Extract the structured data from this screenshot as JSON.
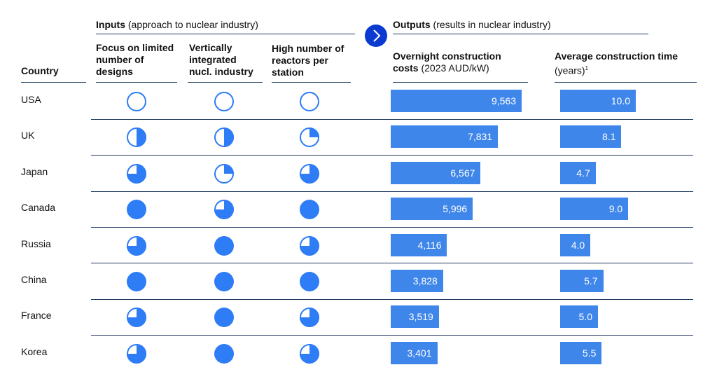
{
  "inputs_group": {
    "title": "Inputs",
    "subtitle": "(approach to nuclear industry)"
  },
  "outputs_group": {
    "title": "Outputs",
    "subtitle": "(results in nuclear industry)"
  },
  "headers": {
    "country": "Country",
    "focus": [
      "Focus on limited",
      "number of",
      "designs"
    ],
    "vertical": [
      "Vertically",
      "integrated",
      "nucl. industry"
    ],
    "reactors": [
      "High number of",
      "reactors per",
      "station"
    ],
    "cost_title": [
      "Overnight construction",
      "costs"
    ],
    "cost_unit": "(2023 AUD/kW)",
    "time_title": "Average construction time",
    "time_unit": "(years)",
    "time_footnote": "1"
  },
  "colors": {
    "bar": "#3f86ea",
    "dot": "#2e7cf6",
    "rule": "#1f3a5f",
    "arrow": "#0b3ad1"
  },
  "chart_data": {
    "type": "table",
    "rows": [
      {
        "country": "USA",
        "focus": 0,
        "vertical": 0,
        "reactors": 0,
        "cost": 9563,
        "cost_label": "9,563",
        "time": 10.0,
        "time_label": "10.0"
      },
      {
        "country": "UK",
        "focus": 0.5,
        "vertical": 0.5,
        "reactors": 0.25,
        "cost": 7831,
        "cost_label": "7,831",
        "time": 8.1,
        "time_label": "8.1"
      },
      {
        "country": "Japan",
        "focus": 0.75,
        "vertical": 0.25,
        "reactors": 0.75,
        "cost": 6567,
        "cost_label": "6,567",
        "time": 4.7,
        "time_label": "4.7"
      },
      {
        "country": "Canada",
        "focus": 1,
        "vertical": 0.75,
        "reactors": 1,
        "cost": 5996,
        "cost_label": "5,996",
        "time": 9.0,
        "time_label": "9.0"
      },
      {
        "country": "Russia",
        "focus": 0.75,
        "vertical": 1,
        "reactors": 0.75,
        "cost": 4116,
        "cost_label": "4,116",
        "time": 4.0,
        "time_label": "4.0"
      },
      {
        "country": "China",
        "focus": 1,
        "vertical": 1,
        "reactors": 1,
        "cost": 3828,
        "cost_label": "3,828",
        "time": 5.7,
        "time_label": "5.7"
      },
      {
        "country": "France",
        "focus": 0.75,
        "vertical": 1,
        "reactors": 0.75,
        "cost": 3519,
        "cost_label": "3,519",
        "time": 5.0,
        "time_label": "5.0"
      },
      {
        "country": "Korea",
        "focus": 0.75,
        "vertical": 1,
        "reactors": 0.75,
        "cost": 3401,
        "cost_label": "3,401",
        "time": 5.5,
        "time_label": "5.5"
      }
    ]
  }
}
